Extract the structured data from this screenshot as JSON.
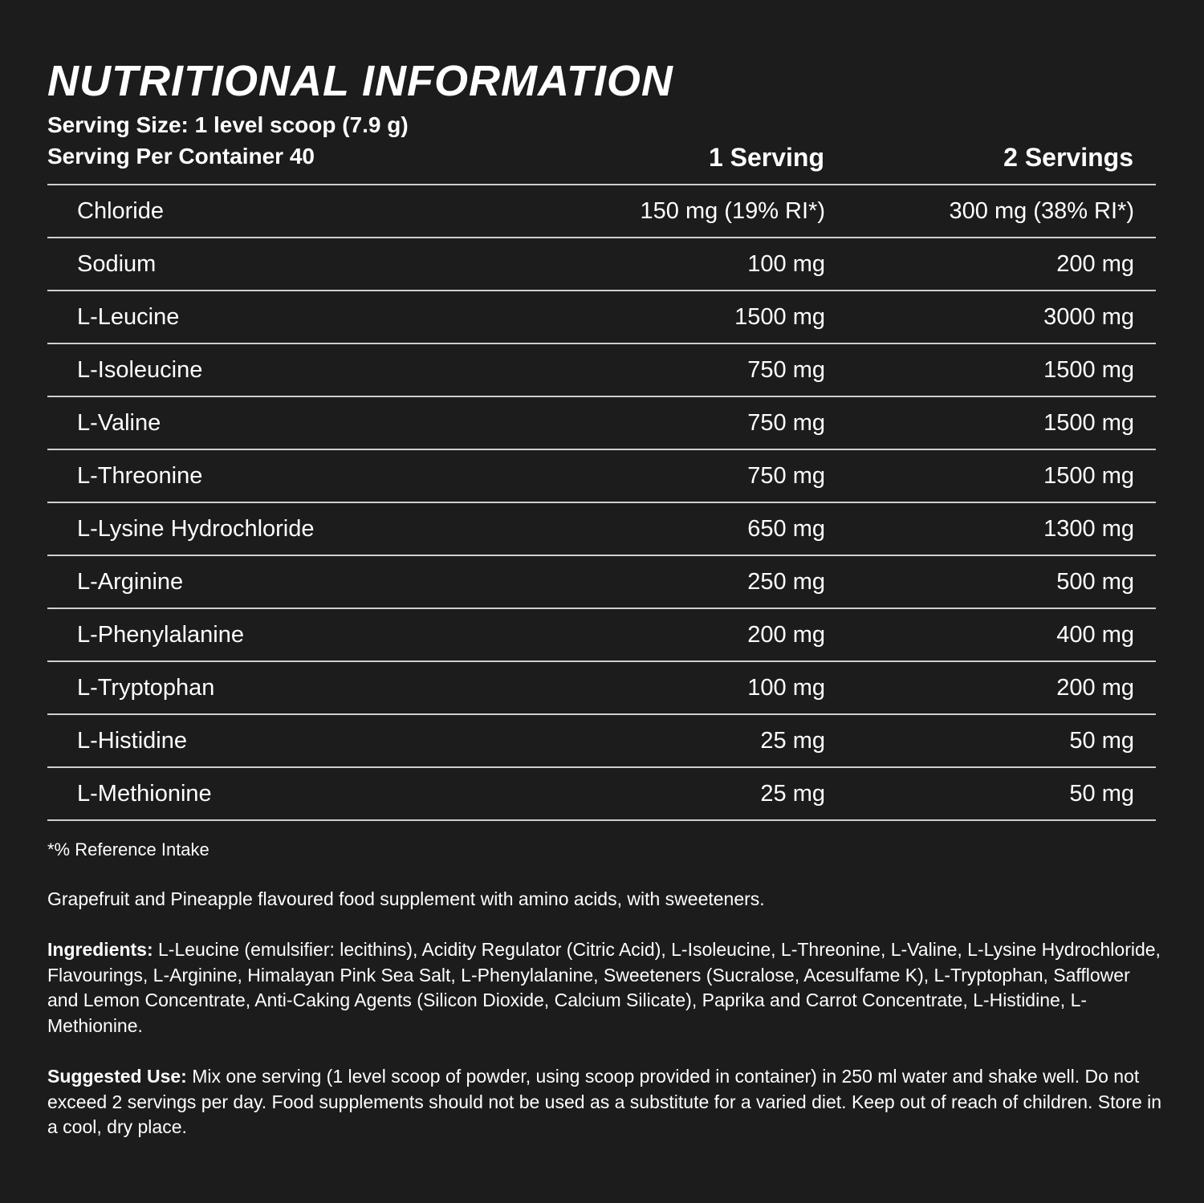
{
  "title": "NUTRITIONAL INFORMATION",
  "serving_size": "Serving Size: 1 level scoop (7.9 g)",
  "servings_per_container": "Serving Per Container 40",
  "columns": [
    "1 Serving",
    "2 Servings"
  ],
  "rows": [
    {
      "name": "Chloride",
      "one": "150 mg (19% RI*)",
      "two": "300 mg (38% RI*)"
    },
    {
      "name": "Sodium",
      "one": "100 mg",
      "two": "200 mg"
    },
    {
      "name": "L-Leucine",
      "one": "1500 mg",
      "two": "3000 mg"
    },
    {
      "name": "L-Isoleucine",
      "one": "750 mg",
      "two": "1500 mg"
    },
    {
      "name": "L-Valine",
      "one": "750 mg",
      "two": "1500 mg"
    },
    {
      "name": "L-Threonine",
      "one": "750 mg",
      "two": "1500 mg"
    },
    {
      "name": "L-Lysine Hydrochloride",
      "one": "650 mg",
      "two": "1300 mg"
    },
    {
      "name": "L-Arginine",
      "one": "250 mg",
      "two": "500 mg"
    },
    {
      "name": "L-Phenylalanine",
      "one": "200 mg",
      "two": "400 mg"
    },
    {
      "name": "L-Tryptophan",
      "one": "100 mg",
      "two": "200 mg"
    },
    {
      "name": "L-Histidine",
      "one": "25 mg",
      "two": "50 mg"
    },
    {
      "name": "L-Methionine",
      "one": "25 mg",
      "two": "50 mg"
    }
  ],
  "footnote": "*% Reference Intake",
  "description": "Grapefruit and Pineapple flavoured food supplement with amino acids, with sweeteners.",
  "ingredients": {
    "label": "Ingredients:",
    "text": " L-Leucine (emulsifier: lecithins), Acidity Regulator (Citric Acid), L-Isoleucine, L-Threonine, L-Valine, L-Lysine Hydrochloride, Flavourings, L-Arginine, Himalayan Pink Sea Salt, L-Phenylalanine, Sweeteners (Sucralose, Acesulfame K), L-Tryptophan, Safflower and Lemon Concentrate, Anti-Caking Agents (Silicon Dioxide, Calcium Silicate), Paprika and Carrot Concentrate, L-Histidine, L-Methionine."
  },
  "suggested_use": {
    "label": "Suggested Use:",
    "text": " Mix one serving (1 level scoop of powder, using scoop provided in container) in 250 ml water and shake well. Do not exceed 2 servings per day. Food supplements should not be used as a substitute for a varied diet. Keep out of reach of children. Store in a cool, dry place."
  }
}
